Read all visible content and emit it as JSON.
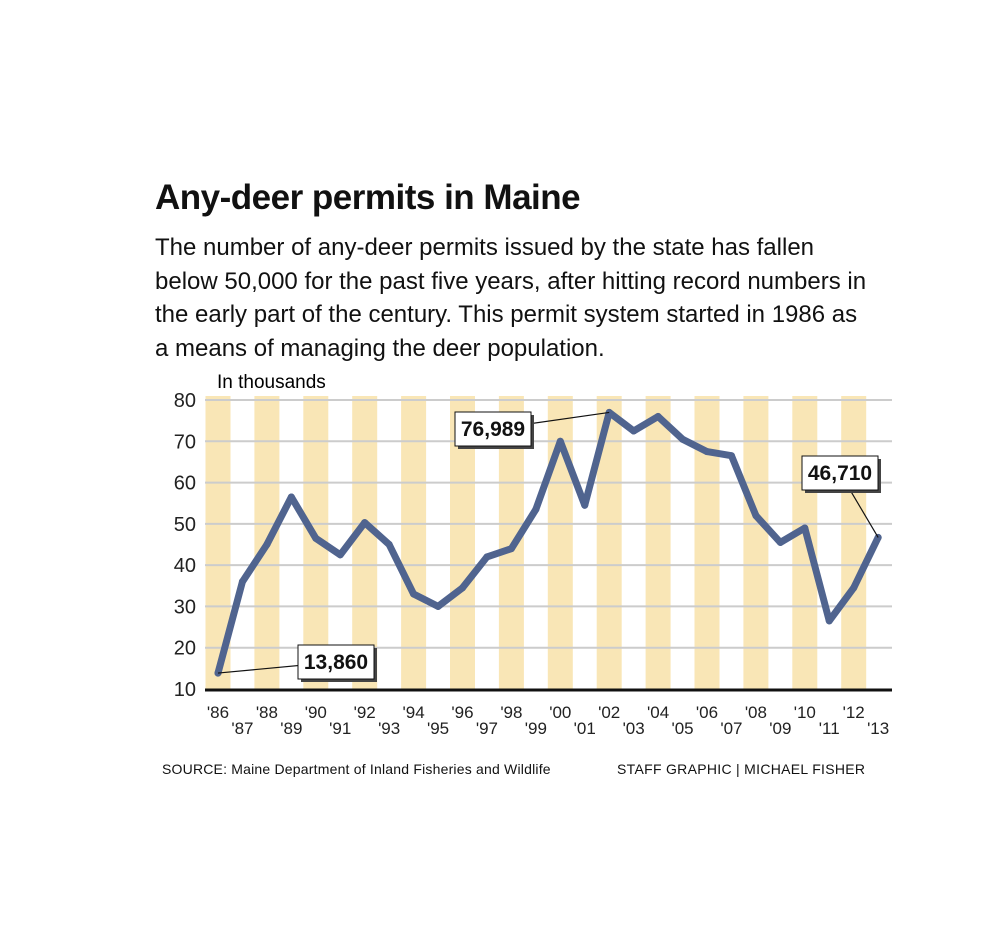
{
  "title": "Any-deer permits in Maine",
  "subtitle": "The number of any-deer permits issued by the state has fallen below 50,000 for the past five years, after hitting record numbers in the early part of the century. This permit system started in 1986 as a means of managing the deer population.",
  "source": "SOURCE: Maine Department of Inland Fisheries and Wildlife",
  "credit": "STAFF GRAPHIC | MICHAEL FISHER",
  "colors": {
    "line": "#50648f",
    "band": "#f9e6b6",
    "grid": "#cccccc",
    "axis": "#111111"
  },
  "chart_data": {
    "type": "line",
    "ylabel": "In thousands",
    "ylim": [
      10,
      80
    ],
    "yticks": [
      10,
      20,
      30,
      40,
      50,
      60,
      70,
      80
    ],
    "grid": true,
    "x": [
      "'86",
      "'87",
      "'88",
      "'89",
      "'90",
      "'91",
      "'92",
      "'93",
      "'94",
      "'95",
      "'96",
      "'97",
      "'98",
      "'99",
      "'00",
      "'01",
      "'02",
      "'03",
      "'04",
      "'05",
      "'06",
      "'07",
      "'08",
      "'09",
      "'10",
      "'11",
      "'12",
      "'13"
    ],
    "series": [
      {
        "values": [
          13.86,
          36,
          45,
          56.5,
          46.5,
          42.5,
          50.3,
          45,
          33,
          30,
          34.5,
          42,
          44,
          53.5,
          70,
          54.5,
          76.989,
          72.5,
          76,
          70.5,
          67.5,
          66.5,
          52,
          45.5,
          49,
          26.5,
          34.5,
          46.71
        ]
      }
    ],
    "annotations": [
      {
        "label": "13,860",
        "x": "'86",
        "value": 13.86
      },
      {
        "label": "76,989",
        "x": "'02",
        "value": 76.989
      },
      {
        "label": "46,710",
        "x": "'13",
        "value": 46.71
      }
    ]
  }
}
